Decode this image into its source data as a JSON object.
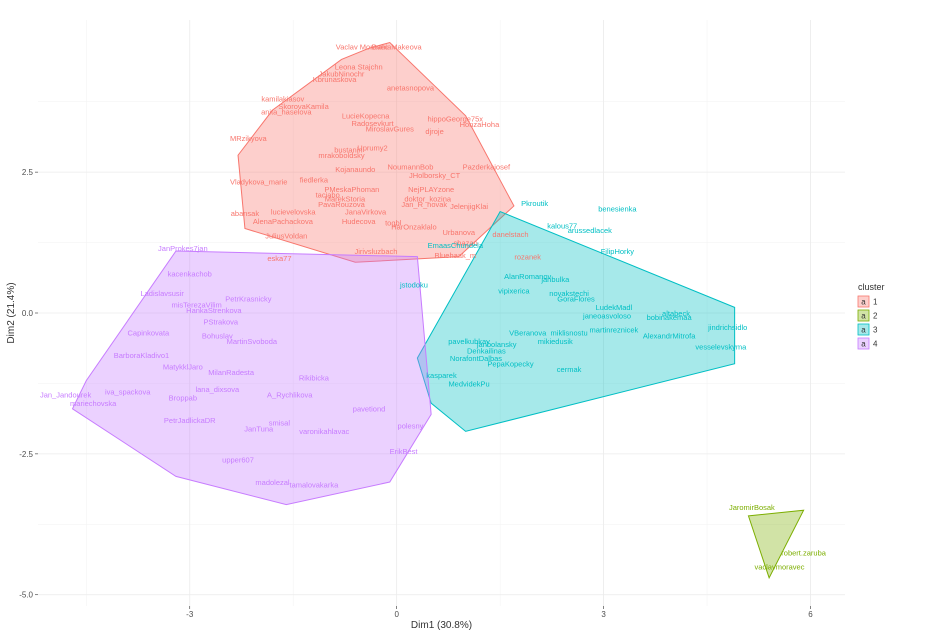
{
  "chart_data": {
    "type": "scatter",
    "xlabel": "Dim1 (30.8%)",
    "ylabel": "Dim2 (21.4%)",
    "xlim": [
      -5.2,
      6.5
    ],
    "ylim": [
      -5.2,
      5.2
    ],
    "x_ticks": [
      -3,
      0,
      3,
      6
    ],
    "y_ticks": [
      -5.0,
      -2.5,
      0.0,
      2.5
    ],
    "x_tick_labels": [
      "-3",
      "0",
      "3",
      "6"
    ],
    "y_tick_labels": [
      "-5.0",
      "-2.5",
      "0.0",
      "2.5"
    ],
    "grid": true,
    "legend": {
      "title": "cluster",
      "position": "right",
      "key_glyph": "a",
      "entries": [
        {
          "label": "1",
          "color": "#F8766D"
        },
        {
          "label": "2",
          "color": "#7CAE00"
        },
        {
          "label": "3",
          "color": "#00BFC4"
        },
        {
          "label": "4",
          "color": "#C77CFF"
        }
      ]
    },
    "hulls": [
      {
        "cluster": "1",
        "points": [
          [
            -0.4,
            4.7
          ],
          [
            -0.1,
            4.8
          ],
          [
            1.0,
            3.5
          ],
          [
            1.7,
            1.9
          ],
          [
            0.9,
            1.0
          ],
          [
            -0.6,
            0.9
          ],
          [
            -2.2,
            1.5
          ],
          [
            -2.3,
            2.8
          ],
          [
            -1.8,
            3.6
          ],
          [
            -0.8,
            4.5
          ]
        ]
      },
      {
        "cluster": "2",
        "points": [
          [
            5.1,
            -3.6
          ],
          [
            5.9,
            -3.5
          ],
          [
            5.4,
            -4.7
          ]
        ]
      },
      {
        "cluster": "3",
        "points": [
          [
            1.5,
            1.8
          ],
          [
            4.9,
            0.1
          ],
          [
            4.9,
            -0.9
          ],
          [
            1.0,
            -2.1
          ],
          [
            0.5,
            -1.6
          ],
          [
            0.3,
            -0.8
          ]
        ]
      },
      {
        "cluster": "4",
        "points": [
          [
            -3.2,
            1.1
          ],
          [
            0.3,
            1.0
          ],
          [
            0.5,
            -1.8
          ],
          [
            -0.1,
            -3.0
          ],
          [
            -1.6,
            -3.4
          ],
          [
            -3.2,
            -2.9
          ],
          [
            -4.7,
            -1.7
          ],
          [
            -4.5,
            -1.2
          ]
        ]
      }
    ],
    "points": [
      {
        "label": "Vaclav Moravec",
        "x": -0.5,
        "y": 4.68,
        "cluster": "1"
      },
      {
        "label": "DaniaMakeova",
        "x": 0.0,
        "y": 4.68,
        "cluster": "1"
      },
      {
        "label": "Leona Stajchn",
        "x": -0.55,
        "y": 4.32,
        "cluster": "1"
      },
      {
        "label": "JakubNinochr",
        "x": -0.8,
        "y": 4.2,
        "cluster": "1"
      },
      {
        "label": "Kbrunaskova",
        "x": -0.9,
        "y": 4.1,
        "cluster": "1"
      },
      {
        "label": "anetasnopova",
        "x": 0.2,
        "y": 3.95,
        "cluster": "1"
      },
      {
        "label": "kamilakiasov",
        "x": -1.65,
        "y": 3.75,
        "cluster": "1"
      },
      {
        "label": "SkorovaKamila",
        "x": -1.35,
        "y": 3.62,
        "cluster": "1"
      },
      {
        "label": "anita_haselova",
        "x": -1.6,
        "y": 3.52,
        "cluster": "1"
      },
      {
        "label": "LucieKopecna",
        "x": -0.45,
        "y": 3.45,
        "cluster": "1"
      },
      {
        "label": "hippoGeorge75x",
        "x": 0.85,
        "y": 3.4,
        "cluster": "1"
      },
      {
        "label": "Radosevkurt",
        "x": -0.35,
        "y": 3.32,
        "cluster": "1"
      },
      {
        "label": "HonzaHoha",
        "x": 1.2,
        "y": 3.3,
        "cluster": "1"
      },
      {
        "label": "MiroslavGures",
        "x": -0.1,
        "y": 3.22,
        "cluster": "1"
      },
      {
        "label": "djroje",
        "x": 0.55,
        "y": 3.18,
        "cluster": "1"
      },
      {
        "label": "MRzikyova",
        "x": -2.15,
        "y": 3.05,
        "cluster": "1"
      },
      {
        "label": "bustanin",
        "x": -0.7,
        "y": 2.85,
        "cluster": "1"
      },
      {
        "label": "Uprumy2",
        "x": -0.35,
        "y": 2.88,
        "cluster": "1"
      },
      {
        "label": "mrakoboldsky",
        "x": -0.8,
        "y": 2.75,
        "cluster": "1"
      },
      {
        "label": "NoumannBob",
        "x": 0.2,
        "y": 2.55,
        "cluster": "1"
      },
      {
        "label": "Pazderkajosef",
        "x": 1.3,
        "y": 2.55,
        "cluster": "1"
      },
      {
        "label": "Kojanaundo",
        "x": -0.6,
        "y": 2.5,
        "cluster": "1"
      },
      {
        "label": "JHolborsky_CT",
        "x": 0.55,
        "y": 2.4,
        "cluster": "1"
      },
      {
        "label": "fiedlerka",
        "x": -1.2,
        "y": 2.32,
        "cluster": "1"
      },
      {
        "label": "Vladykova_marie",
        "x": -2.0,
        "y": 2.28,
        "cluster": "1"
      },
      {
        "label": "PMeskaPhoman",
        "x": -0.65,
        "y": 2.15,
        "cluster": "1"
      },
      {
        "label": "NejPLAYzone",
        "x": 0.5,
        "y": 2.15,
        "cluster": "1"
      },
      {
        "label": "taciabo",
        "x": -1.0,
        "y": 2.05,
        "cluster": "1"
      },
      {
        "label": "MarekStoria",
        "x": -0.75,
        "y": 1.98,
        "cluster": "1"
      },
      {
        "label": "doktor_kozina",
        "x": 0.45,
        "y": 1.98,
        "cluster": "1"
      },
      {
        "label": "PavaRouzova",
        "x": -0.8,
        "y": 1.88,
        "cluster": "1"
      },
      {
        "label": "Jan_R_novak",
        "x": 0.4,
        "y": 1.88,
        "cluster": "1"
      },
      {
        "label": "JelenjigKlai",
        "x": 1.05,
        "y": 1.85,
        "cluster": "1"
      },
      {
        "label": "abansak",
        "x": -2.2,
        "y": 1.72,
        "cluster": "1"
      },
      {
        "label": "lucievelovska",
        "x": -1.5,
        "y": 1.75,
        "cluster": "1"
      },
      {
        "label": "JanaVirkova",
        "x": -0.45,
        "y": 1.75,
        "cluster": "1"
      },
      {
        "label": "AlenaPachackova",
        "x": -1.65,
        "y": 1.58,
        "cluster": "1"
      },
      {
        "label": "Hudecova",
        "x": -0.55,
        "y": 1.58,
        "cluster": "1"
      },
      {
        "label": "togbl",
        "x": -0.05,
        "y": 1.55,
        "cluster": "1"
      },
      {
        "label": "HarOnzaklalo",
        "x": 0.25,
        "y": 1.48,
        "cluster": "1"
      },
      {
        "label": "Urbanova",
        "x": 0.9,
        "y": 1.38,
        "cluster": "1"
      },
      {
        "label": "JuliusVoldan",
        "x": -1.6,
        "y": 1.32,
        "cluster": "1"
      },
      {
        "label": "danelstach",
        "x": 1.65,
        "y": 1.35,
        "cluster": "1"
      },
      {
        "label": "shazan",
        "x": 1.0,
        "y": 1.2,
        "cluster": "1"
      },
      {
        "label": "rozanek",
        "x": 1.9,
        "y": 0.95,
        "cluster": "1"
      },
      {
        "label": "Bluehaak_m",
        "x": 0.85,
        "y": 0.98,
        "cluster": "1"
      },
      {
        "label": "Jirivsluzbach",
        "x": -0.3,
        "y": 1.05,
        "cluster": "1"
      },
      {
        "label": "eska77",
        "x": -1.7,
        "y": 0.92,
        "cluster": "1"
      },
      {
        "label": "Pkroutik",
        "x": 2.0,
        "y": 1.9,
        "cluster": "3"
      },
      {
        "label": "benesienka",
        "x": 3.2,
        "y": 1.8,
        "cluster": "3"
      },
      {
        "label": "kalous77",
        "x": 2.4,
        "y": 1.5,
        "cluster": "3"
      },
      {
        "label": "arussedlacek",
        "x": 2.8,
        "y": 1.42,
        "cluster": "3"
      },
      {
        "label": "EmaasChundela",
        "x": 0.85,
        "y": 1.15,
        "cluster": "3"
      },
      {
        "label": "FilipHorky",
        "x": 3.2,
        "y": 1.05,
        "cluster": "3"
      },
      {
        "label": "AlanRomanov",
        "x": 1.9,
        "y": 0.6,
        "cluster": "3"
      },
      {
        "label": "janbulka",
        "x": 2.3,
        "y": 0.55,
        "cluster": "3"
      },
      {
        "label": "jstodoku",
        "x": 0.25,
        "y": 0.45,
        "cluster": "3"
      },
      {
        "label": "novakstechi",
        "x": 2.5,
        "y": 0.3,
        "cluster": "3"
      },
      {
        "label": "vipixerica",
        "x": 1.7,
        "y": 0.35,
        "cluster": "3"
      },
      {
        "label": "GoraFlores",
        "x": 2.6,
        "y": 0.2,
        "cluster": "3"
      },
      {
        "label": "LudekMadl",
        "x": 3.15,
        "y": 0.05,
        "cluster": "3"
      },
      {
        "label": "altabeck",
        "x": 4.05,
        "y": -0.05,
        "cluster": "3"
      },
      {
        "label": "janeoasvoloso",
        "x": 3.05,
        "y": -0.1,
        "cluster": "3"
      },
      {
        "label": "bobinakemaa",
        "x": 3.95,
        "y": -0.12,
        "cluster": "3"
      },
      {
        "label": "jindrichsidlo",
        "x": 4.8,
        "y": -0.3,
        "cluster": "3"
      },
      {
        "label": "martinreznicek",
        "x": 3.15,
        "y": -0.35,
        "cluster": "3"
      },
      {
        "label": "AlexandrMitrofa",
        "x": 3.95,
        "y": -0.45,
        "cluster": "3"
      },
      {
        "label": "VBeranova",
        "x": 1.9,
        "y": -0.4,
        "cluster": "3"
      },
      {
        "label": "miklisnostu",
        "x": 2.5,
        "y": -0.4,
        "cluster": "3"
      },
      {
        "label": "mikiedusik",
        "x": 2.3,
        "y": -0.55,
        "cluster": "3"
      },
      {
        "label": "vesselevskyma",
        "x": 4.7,
        "y": -0.65,
        "cluster": "3"
      },
      {
        "label": "pavelkubkay",
        "x": 1.05,
        "y": -0.55,
        "cluster": "3"
      },
      {
        "label": "janbolansky",
        "x": 1.45,
        "y": -0.6,
        "cluster": "3"
      },
      {
        "label": "Denkailinas",
        "x": 1.3,
        "y": -0.72,
        "cluster": "3"
      },
      {
        "label": "NorafontDalbas",
        "x": 1.15,
        "y": -0.85,
        "cluster": "3"
      },
      {
        "label": "PepaKopecky",
        "x": 1.65,
        "y": -0.95,
        "cluster": "3"
      },
      {
        "label": "cermak",
        "x": 2.5,
        "y": -1.05,
        "cluster": "3"
      },
      {
        "label": "kasparek",
        "x": 0.65,
        "y": -1.15,
        "cluster": "3"
      },
      {
        "label": "MedvidekPu",
        "x": 1.05,
        "y": -1.3,
        "cluster": "3"
      },
      {
        "label": "JaromirBosak",
        "x": 5.15,
        "y": -3.5,
        "cluster": "2"
      },
      {
        "label": "robert.zaruba",
        "x": 5.9,
        "y": -4.3,
        "cluster": "2"
      },
      {
        "label": "vaclavmoravec",
        "x": 5.55,
        "y": -4.55,
        "cluster": "2"
      },
      {
        "label": "JanProkes7jan",
        "x": -3.1,
        "y": 1.1,
        "cluster": "4"
      },
      {
        "label": "kacenkachob",
        "x": -3.0,
        "y": 0.65,
        "cluster": "4"
      },
      {
        "label": "Ladislavsusir",
        "x": -3.4,
        "y": 0.3,
        "cluster": "4"
      },
      {
        "label": "PetrKrasnicky",
        "x": -2.15,
        "y": 0.2,
        "cluster": "4"
      },
      {
        "label": "misTerezaVilim",
        "x": -2.9,
        "y": 0.1,
        "cluster": "4"
      },
      {
        "label": "HankaStrenkova",
        "x": -2.65,
        "y": -0.0,
        "cluster": "4"
      },
      {
        "label": "PStrakova",
        "x": -2.55,
        "y": -0.2,
        "cluster": "4"
      },
      {
        "label": "Capinkovata",
        "x": -3.6,
        "y": -0.4,
        "cluster": "4"
      },
      {
        "label": "Bohuslav",
        "x": -2.6,
        "y": -0.45,
        "cluster": "4"
      },
      {
        "label": "MartinSvoboda",
        "x": -2.1,
        "y": -0.55,
        "cluster": "4"
      },
      {
        "label": "BarboraKladivo1",
        "x": -3.7,
        "y": -0.8,
        "cluster": "4"
      },
      {
        "label": "MatykklJaro",
        "x": -3.1,
        "y": -1.0,
        "cluster": "4"
      },
      {
        "label": "MilanRadesta",
        "x": -2.4,
        "y": -1.1,
        "cluster": "4"
      },
      {
        "label": "Jan_Jandourek",
        "x": -4.8,
        "y": -1.5,
        "cluster": "4"
      },
      {
        "label": "iva_spackova",
        "x": -3.9,
        "y": -1.45,
        "cluster": "4"
      },
      {
        "label": "lana_dixsova",
        "x": -2.6,
        "y": -1.4,
        "cluster": "4"
      },
      {
        "label": "Broppab",
        "x": -3.1,
        "y": -1.55,
        "cluster": "4"
      },
      {
        "label": "mariechovska",
        "x": -4.4,
        "y": -1.65,
        "cluster": "4"
      },
      {
        "label": "Rikibicka",
        "x": -1.2,
        "y": -1.2,
        "cluster": "4"
      },
      {
        "label": "A_Rychlikova",
        "x": -1.55,
        "y": -1.5,
        "cluster": "4"
      },
      {
        "label": "PetrJadlickaDR",
        "x": -3.0,
        "y": -1.95,
        "cluster": "4"
      },
      {
        "label": "JanTuna",
        "x": -2.0,
        "y": -2.1,
        "cluster": "4"
      },
      {
        "label": "smisal",
        "x": -1.7,
        "y": -2.0,
        "cluster": "4"
      },
      {
        "label": "varonikahlavac",
        "x": -1.05,
        "y": -2.15,
        "cluster": "4"
      },
      {
        "label": "pavetiond",
        "x": -0.4,
        "y": -1.75,
        "cluster": "4"
      },
      {
        "label": "polesny",
        "x": 0.2,
        "y": -2.05,
        "cluster": "4"
      },
      {
        "label": "ErikBest",
        "x": 0.1,
        "y": -2.5,
        "cluster": "4"
      },
      {
        "label": "upper607",
        "x": -2.3,
        "y": -2.65,
        "cluster": "4"
      },
      {
        "label": "madolezal",
        "x": -1.8,
        "y": -3.05,
        "cluster": "4"
      },
      {
        "label": "tamalovakarka",
        "x": -1.2,
        "y": -3.1,
        "cluster": "4"
      }
    ]
  }
}
